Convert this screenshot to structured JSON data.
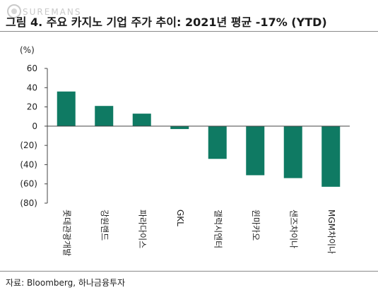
{
  "header": {
    "title": "그림 4. 주요 카지노 기업 주가 추이: 2021년 평균 -17% (YTD)",
    "watermark": "SUREMANS"
  },
  "source": "자료: Bloomberg, 하나금융투자",
  "chart_data": {
    "type": "bar",
    "ylabel": "(%)",
    "ylim": [
      -80,
      60
    ],
    "yticks": [
      60,
      40,
      20,
      0,
      -20,
      -40,
      -60,
      -80
    ],
    "ytick_labels": [
      "60",
      "40",
      "20",
      "0",
      "(20)",
      "(40)",
      "(60)",
      "(80)"
    ],
    "categories": [
      "롯데관광개발",
      "강원랜드",
      "파라다이스",
      "GKL",
      "갤럭시엔터",
      "윈마카오",
      "샌즈차이나",
      "MGM차이나"
    ],
    "values": [
      36,
      21,
      13,
      -3,
      -34,
      -51,
      -54,
      -63
    ],
    "bar_color": "#0f7a63",
    "grid": false
  }
}
